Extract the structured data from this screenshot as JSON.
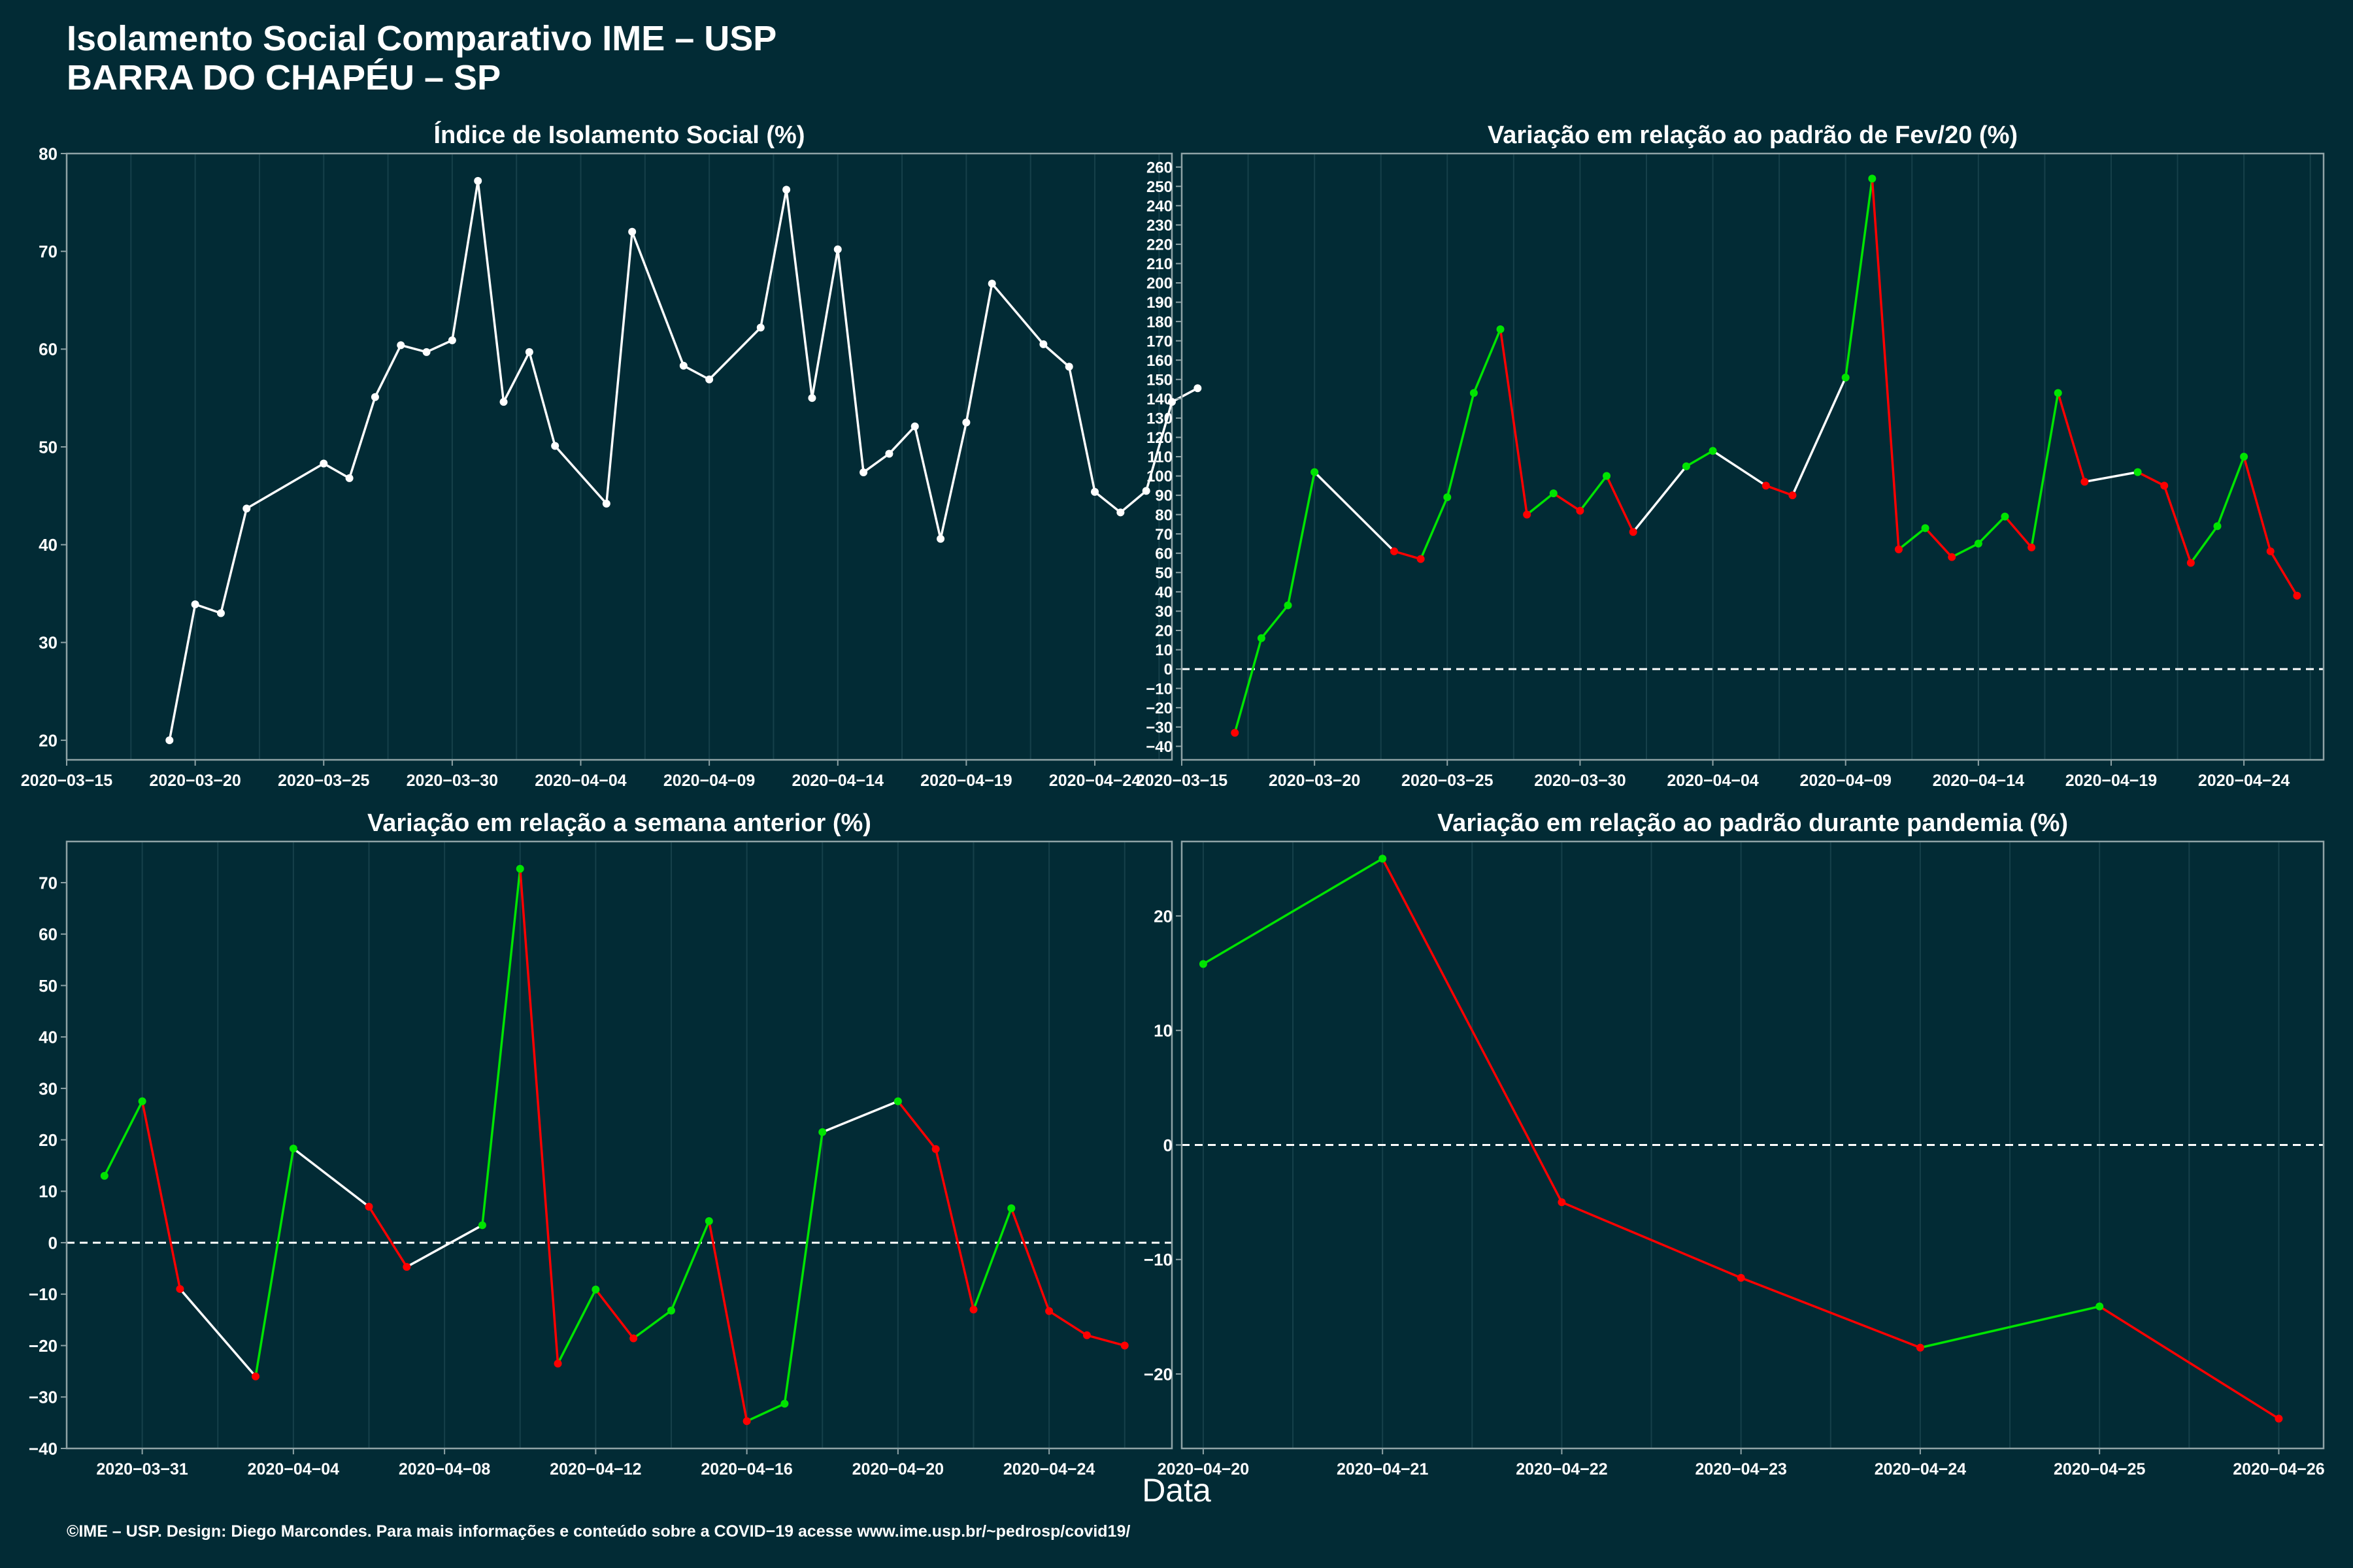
{
  "header": {
    "title_line1": "Isolamento Social Comparativo IME – USP",
    "title_line2": "BARRA DO CHAPÉU – SP"
  },
  "common_xlabel": "Data",
  "footer": "©IME – USP. Design: Diego Marcondes. Para mais informações e conteúdo sobre a COVID−19 acesse www.ime.usp.br/~pedrosp/covid19/",
  "colors": {
    "background": "#022b35",
    "line_default": "#ffffff",
    "increase": "#00e400",
    "decrease": "#ff0000",
    "axis": "#8fa3a6",
    "grid": "#16404a"
  },
  "chart_data": [
    {
      "type": "line",
      "title": "Índice de Isolamento Social (%)",
      "xlabel": "",
      "ylabel": "",
      "xlim": [
        "2020-03-15",
        "2020-04-27"
      ],
      "ylim": [
        18,
        80
      ],
      "yticks": [
        20,
        30,
        40,
        50,
        60,
        70,
        80
      ],
      "xticks": [
        "2020-03-15",
        "2020-03-20",
        "2020-03-25",
        "2020-03-30",
        "2020-04-04",
        "2020-04-09",
        "2020-04-14",
        "2020-04-19",
        "2020-04-24"
      ],
      "grid": true,
      "zero_line": false,
      "color_mode": "single",
      "series": [
        {
          "x": [
            "2020-03-19",
            "2020-03-20",
            "2020-03-21",
            "2020-03-22",
            "2020-03-25",
            "2020-03-26",
            "2020-03-27",
            "2020-03-28",
            "2020-03-29",
            "2020-03-30",
            "2020-03-31",
            "2020-04-01",
            "2020-04-02",
            "2020-04-03",
            "2020-04-05",
            "2020-04-06",
            "2020-04-08",
            "2020-04-09",
            "2020-04-11",
            "2020-04-12",
            "2020-04-13",
            "2020-04-14",
            "2020-04-15",
            "2020-04-16",
            "2020-04-17",
            "2020-04-18",
            "2020-04-19",
            "2020-04-20",
            "2020-04-22",
            "2020-04-23",
            "2020-04-24",
            "2020-04-25",
            "2020-04-26",
            "2020-04-27",
            "2020-04-28"
          ],
          "y": [
            20.0,
            33.9,
            33.0,
            43.7,
            48.3,
            46.8,
            55.1,
            60.4,
            59.7,
            60.9,
            77.2,
            54.6,
            59.7,
            50.1,
            44.2,
            72.0,
            58.3,
            56.9,
            62.2,
            76.3,
            55.0,
            70.2,
            47.4,
            49.3,
            52.1,
            40.6,
            52.5,
            66.7,
            60.5,
            58.2,
            45.4,
            43.3,
            45.5,
            54.6,
            56.0
          ]
        }
      ]
    },
    {
      "type": "line",
      "title": "Variação em relação ao padrão de Fev/20 (%)",
      "xlabel": "",
      "ylabel": "",
      "xlim": [
        "2020-03-15",
        "2020-04-27"
      ],
      "ylim": [
        -47,
        267
      ],
      "yticks": [
        -40,
        -30,
        -20,
        -10,
        0,
        10,
        20,
        30,
        40,
        50,
        60,
        70,
        80,
        90,
        100,
        110,
        120,
        130,
        140,
        150,
        160,
        170,
        180,
        190,
        200,
        210,
        220,
        230,
        240,
        250,
        260
      ],
      "xticks": [
        "2020-03-15",
        "2020-03-20",
        "2020-03-25",
        "2020-03-30",
        "2020-04-04",
        "2020-04-09",
        "2020-04-14",
        "2020-04-19",
        "2020-04-24"
      ],
      "grid": true,
      "zero_line": true,
      "color_mode": "trend",
      "series": [
        {
          "x": [
            "2020-03-17",
            "2020-03-18",
            "2020-03-19",
            "2020-03-20",
            "2020-03-23",
            "2020-03-24",
            "2020-03-25",
            "2020-03-26",
            "2020-03-27",
            "2020-03-28",
            "2020-03-29",
            "2020-03-30",
            "2020-03-31",
            "2020-04-01",
            "2020-04-03",
            "2020-04-04",
            "2020-04-06",
            "2020-04-07",
            "2020-04-09",
            "2020-04-10",
            "2020-04-11",
            "2020-04-12",
            "2020-04-13",
            "2020-04-14",
            "2020-04-15",
            "2020-04-16",
            "2020-04-17",
            "2020-04-18",
            "2020-04-20",
            "2020-04-21",
            "2020-04-22",
            "2020-04-23",
            "2020-04-24",
            "2020-04-25",
            "2020-04-26"
          ],
          "y": [
            -33,
            16,
            33,
            102,
            61,
            57,
            89,
            143,
            176,
            80,
            91,
            82,
            100,
            71,
            105,
            113,
            95,
            90,
            151,
            254,
            62,
            73,
            58,
            65,
            79,
            63,
            143,
            97,
            102,
            95,
            55,
            74,
            110,
            61,
            38
          ]
        }
      ]
    },
    {
      "type": "line",
      "title": "Variação em relação a semana anterior (%)",
      "xlabel": "",
      "ylabel": "",
      "xlim": [
        "2020-03-29",
        "2020-04-27.25"
      ],
      "ylim": [
        -40,
        78
      ],
      "yticks": [
        -40,
        -30,
        -20,
        -10,
        0,
        10,
        20,
        30,
        40,
        50,
        60,
        70
      ],
      "xticks": [
        "2020-03-31",
        "2020-04-04",
        "2020-04-08",
        "2020-04-12",
        "2020-04-16",
        "2020-04-20",
        "2020-04-24"
      ],
      "grid": true,
      "zero_line": true,
      "color_mode": "trend",
      "series": [
        {
          "x": [
            "2020-03-30",
            "2020-03-31",
            "2020-04-01",
            "2020-04-03",
            "2020-04-04",
            "2020-04-06",
            "2020-04-07",
            "2020-04-09",
            "2020-04-10",
            "2020-04-11",
            "2020-04-12",
            "2020-04-13",
            "2020-04-14",
            "2020-04-15",
            "2020-04-16",
            "2020-04-17",
            "2020-04-18",
            "2020-04-20",
            "2020-04-21",
            "2020-04-22",
            "2020-04-23",
            "2020-04-24",
            "2020-04-25",
            "2020-04-26"
          ],
          "y": [
            13,
            27.5,
            -9,
            -26,
            18.3,
            7,
            -4.7,
            3.4,
            72.7,
            -23.5,
            -9.1,
            -18.6,
            -13.2,
            4.2,
            -34.7,
            -31.3,
            21.5,
            27.5,
            18.2,
            -13,
            6.7,
            -13.3,
            -18,
            -20
          ]
        }
      ]
    },
    {
      "type": "line",
      "title": "Variação em relação ao padrão durante pandemia (%)",
      "xlabel": "",
      "ylabel": "",
      "xlim": [
        "2020-04-19.88",
        "2020-04-26.25"
      ],
      "ylim": [
        -26.5,
        26.5
      ],
      "yticks": [
        -20,
        -10,
        0,
        10,
        20
      ],
      "xticks": [
        "2020-04-20",
        "2020-04-21",
        "2020-04-22",
        "2020-04-23",
        "2020-04-24",
        "2020-04-25",
        "2020-04-26"
      ],
      "grid": true,
      "zero_line": true,
      "color_mode": "trend",
      "series": [
        {
          "x": [
            "2020-04-20",
            "2020-04-21",
            "2020-04-22",
            "2020-04-23",
            "2020-04-24",
            "2020-04-25",
            "2020-04-26"
          ],
          "y": [
            15.8,
            25.0,
            -5.0,
            -11.6,
            -17.7,
            -14.1,
            -23.9
          ]
        }
      ]
    }
  ]
}
